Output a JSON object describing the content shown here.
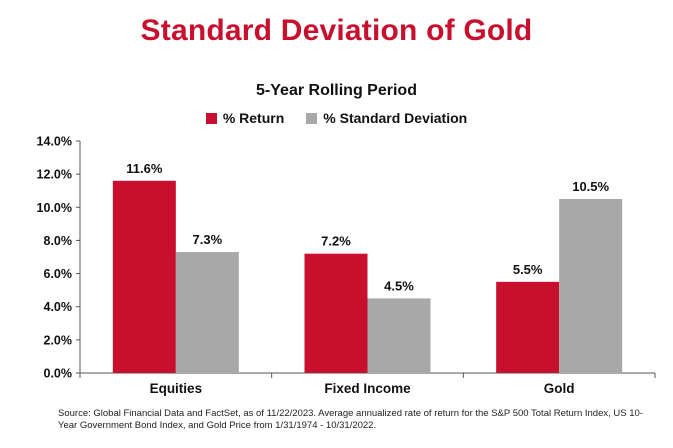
{
  "title": "Standard Deviation of Gold",
  "subtitle": "5-Year Rolling Period",
  "source": "Source: Global Financial Data and FactSet, as of 11/22/2023. Average annualized rate of return for the S&P 500 Total Return Index, US 10-Year Government Bond Index, and Gold Price from 1/31/1974 - 10/31/2022.",
  "colors": {
    "title": "#c8102e",
    "return": "#c8102e",
    "std": "#a8a8a8"
  },
  "chart_data": {
    "type": "bar",
    "categories": [
      "Equities",
      "Fixed Income",
      "Gold"
    ],
    "series": [
      {
        "name": "% Return",
        "values": [
          11.6,
          7.2,
          5.5
        ],
        "labels": [
          "11.6%",
          "7.2%",
          "5.5%"
        ]
      },
      {
        "name": "% Standard Deviation",
        "values": [
          7.3,
          4.5,
          10.5
        ],
        "labels": [
          "7.3%",
          "4.5%",
          "10.5%"
        ]
      }
    ],
    "ylim": [
      0,
      14
    ],
    "yticks": [
      0,
      2,
      4,
      6,
      8,
      10,
      12,
      14
    ],
    "ytick_labels": [
      "0.0%",
      "2.0%",
      "4.0%",
      "6.0%",
      "8.0%",
      "10.0%",
      "12.0%",
      "14.0%"
    ],
    "grid": false,
    "legend_position": "top-center"
  }
}
